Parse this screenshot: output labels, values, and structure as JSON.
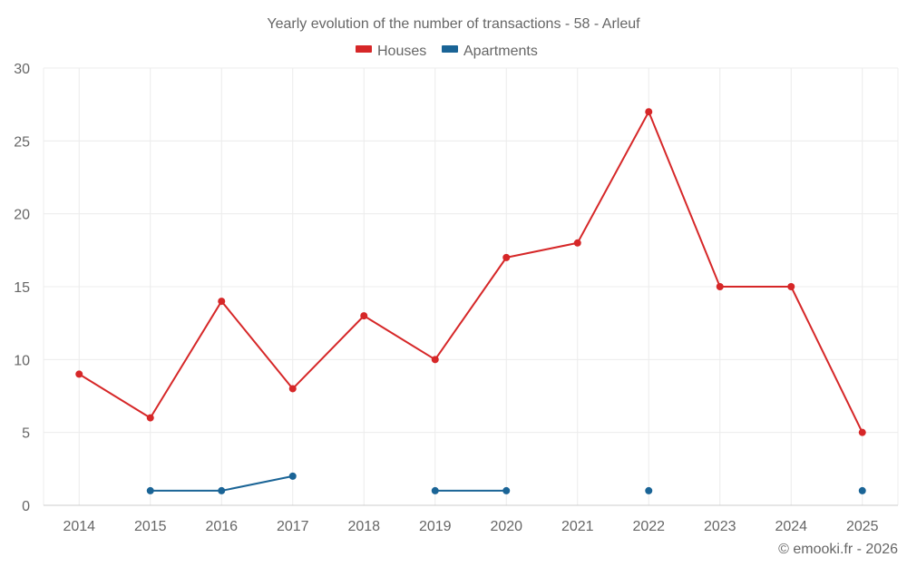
{
  "chart_data": {
    "type": "line",
    "title": "Yearly evolution of the number of transactions - 58 - Arleuf",
    "categories": [
      "2014",
      "2015",
      "2016",
      "2017",
      "2018",
      "2019",
      "2020",
      "2021",
      "2022",
      "2023",
      "2024",
      "2025"
    ],
    "series": [
      {
        "name": "Houses",
        "color": "#d62728",
        "values": [
          9,
          6,
          14,
          8,
          13,
          10,
          17,
          18,
          27,
          15,
          15,
          5
        ]
      },
      {
        "name": "Apartments",
        "color": "#1a6496",
        "values": [
          null,
          1,
          1,
          2,
          null,
          1,
          1,
          null,
          1,
          null,
          null,
          1
        ]
      }
    ],
    "ylim": [
      0,
      30
    ],
    "yticks": [
      0,
      5,
      10,
      15,
      20,
      25,
      30
    ],
    "grid": true,
    "legend_position": "top-center",
    "xlabel": "",
    "ylabel": ""
  },
  "credit": "© emooki.fr - 2026"
}
